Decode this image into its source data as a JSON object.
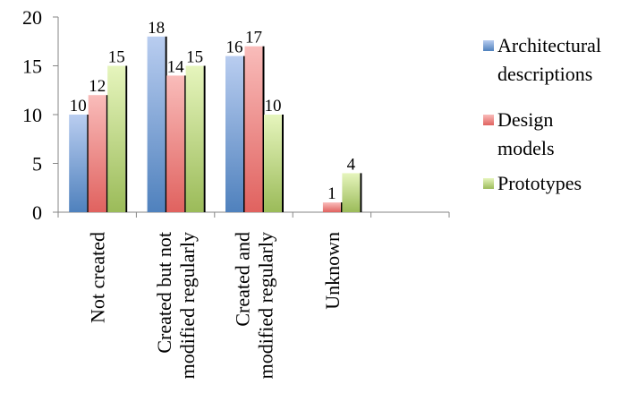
{
  "chart_data": {
    "type": "bar",
    "categories": [
      [
        "Not created"
      ],
      [
        "Created but not",
        "modified regularly"
      ],
      [
        "Created and",
        "modified regularly"
      ],
      [
        "Unknown"
      ]
    ],
    "series": [
      {
        "name": "Architectural descriptions",
        "legend_lines": [
          "Architectural",
          "descriptions"
        ],
        "values": [
          10,
          18,
          16,
          null
        ],
        "color": "#4f81bd",
        "color_light": "#b9cdf0"
      },
      {
        "name": "Design models",
        "legend_lines": [
          "Design",
          "models"
        ],
        "values": [
          12,
          14,
          17,
          1
        ],
        "color": "#e0625f",
        "color_light": "#f9bcba"
      },
      {
        "name": "Prototypes",
        "legend_lines": [
          "Prototypes"
        ],
        "values": [
          15,
          15,
          10,
          4
        ],
        "color": "#9bbb59",
        "color_light": "#e6f5bd"
      }
    ],
    "ylim": [
      0,
      20
    ],
    "yticks": [
      0,
      5,
      10,
      15,
      20
    ],
    "grid": false,
    "legend": "right",
    "title": "",
    "xlabel": "",
    "ylabel": ""
  }
}
